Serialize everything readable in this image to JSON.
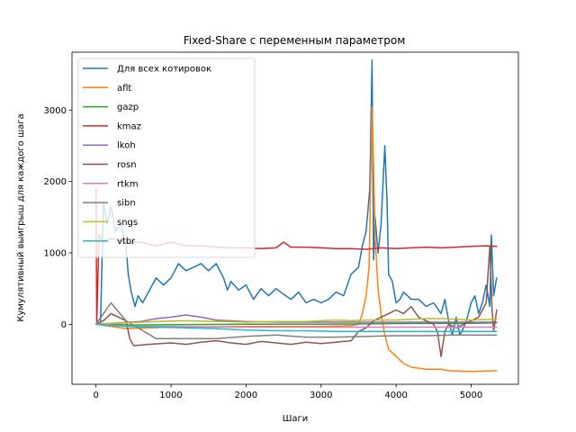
{
  "chart_data": {
    "type": "line",
    "title": "Fixed-Share с переменным параметром",
    "xlabel": "Шаги",
    "ylabel": "Кумулятивный выигрыш для каждого шага",
    "xlim": [
      -320,
      5630
    ],
    "ylim": [
      -840,
      3810
    ],
    "xticks": [
      0,
      1000,
      2000,
      3000,
      4000,
      5000
    ],
    "yticks": [
      0,
      1000,
      2000,
      3000
    ],
    "grid": false,
    "legend_position": "top-left",
    "series": [
      {
        "name": "Для всех котировок",
        "color": "#1f77b4",
        "points": [
          [
            0,
            0
          ],
          [
            60,
            30
          ],
          [
            100,
            1700
          ],
          [
            150,
            1400
          ],
          [
            200,
            1650
          ],
          [
            260,
            1300
          ],
          [
            330,
            1400
          ],
          [
            400,
            1100
          ],
          [
            430,
            700
          ],
          [
            470,
            450
          ],
          [
            520,
            250
          ],
          [
            560,
            400
          ],
          [
            620,
            300
          ],
          [
            700,
            450
          ],
          [
            800,
            650
          ],
          [
            900,
            550
          ],
          [
            1000,
            650
          ],
          [
            1100,
            850
          ],
          [
            1200,
            750
          ],
          [
            1300,
            800
          ],
          [
            1400,
            850
          ],
          [
            1500,
            750
          ],
          [
            1600,
            850
          ],
          [
            1700,
            650
          ],
          [
            1750,
            480
          ],
          [
            1800,
            600
          ],
          [
            1900,
            480
          ],
          [
            2000,
            550
          ],
          [
            2100,
            350
          ],
          [
            2200,
            500
          ],
          [
            2300,
            400
          ],
          [
            2400,
            500
          ],
          [
            2500,
            420
          ],
          [
            2600,
            350
          ],
          [
            2700,
            450
          ],
          [
            2800,
            300
          ],
          [
            2900,
            350
          ],
          [
            3000,
            300
          ],
          [
            3100,
            350
          ],
          [
            3200,
            450
          ],
          [
            3300,
            400
          ],
          [
            3400,
            700
          ],
          [
            3500,
            800
          ],
          [
            3550,
            1100
          ],
          [
            3600,
            1300
          ],
          [
            3650,
            1900
          ],
          [
            3680,
            3700
          ],
          [
            3700,
            900
          ],
          [
            3720,
            1500
          ],
          [
            3760,
            1000
          ],
          [
            3800,
            1400
          ],
          [
            3850,
            2500
          ],
          [
            3880,
            1700
          ],
          [
            3900,
            700
          ],
          [
            3950,
            600
          ],
          [
            4000,
            300
          ],
          [
            4050,
            350
          ],
          [
            4100,
            450
          ],
          [
            4200,
            350
          ],
          [
            4300,
            350
          ],
          [
            4400,
            250
          ],
          [
            4500,
            300
          ],
          [
            4600,
            150
          ],
          [
            4650,
            350
          ],
          [
            4700,
            50
          ],
          [
            4750,
            -150
          ],
          [
            4800,
            100
          ],
          [
            4850,
            -150
          ],
          [
            4900,
            -50
          ],
          [
            4950,
            100
          ],
          [
            5000,
            300
          ],
          [
            5050,
            400
          ],
          [
            5100,
            150
          ],
          [
            5150,
            300
          ],
          [
            5200,
            550
          ],
          [
            5250,
            250
          ],
          [
            5270,
            1250
          ],
          [
            5300,
            400
          ],
          [
            5340,
            650
          ]
        ]
      },
      {
        "name": "aflt",
        "color": "#ff7f0e",
        "points": [
          [
            0,
            0
          ],
          [
            400,
            -60
          ],
          [
            1000,
            -40
          ],
          [
            2000,
            -30
          ],
          [
            3000,
            -30
          ],
          [
            3400,
            -20
          ],
          [
            3500,
            0
          ],
          [
            3550,
            150
          ],
          [
            3600,
            400
          ],
          [
            3640,
            800
          ],
          [
            3680,
            3050
          ],
          [
            3700,
            2200
          ],
          [
            3720,
            1200
          ],
          [
            3760,
            500
          ],
          [
            3800,
            150
          ],
          [
            3850,
            -150
          ],
          [
            3900,
            -350
          ],
          [
            4000,
            -450
          ],
          [
            4100,
            -550
          ],
          [
            4200,
            -600
          ],
          [
            4400,
            -630
          ],
          [
            4600,
            -630
          ],
          [
            4700,
            -650
          ],
          [
            5000,
            -660
          ],
          [
            5340,
            -650
          ]
        ]
      },
      {
        "name": "gazp",
        "color": "#2ca02c",
        "points": [
          [
            0,
            0
          ],
          [
            500,
            -10
          ],
          [
            1000,
            -5
          ],
          [
            2000,
            0
          ],
          [
            3000,
            0
          ],
          [
            4000,
            10
          ],
          [
            5000,
            15
          ],
          [
            5340,
            20
          ]
        ]
      },
      {
        "name": "kmaz",
        "color": "#d62728",
        "points": [
          [
            0,
            1900
          ],
          [
            10,
            0
          ],
          [
            40,
            1250
          ],
          [
            100,
            1150
          ],
          [
            200,
            1200
          ],
          [
            400,
            1150
          ],
          [
            600,
            1150
          ],
          [
            800,
            1100
          ],
          [
            1000,
            1150
          ],
          [
            1200,
            1100
          ],
          [
            1400,
            1100
          ],
          [
            1600,
            1080
          ],
          [
            1800,
            1070
          ],
          [
            2000,
            1070
          ],
          [
            2200,
            1060
          ],
          [
            2400,
            1070
          ],
          [
            2500,
            1150
          ],
          [
            2600,
            1080
          ],
          [
            2800,
            1080
          ],
          [
            3000,
            1070
          ],
          [
            3200,
            1060
          ],
          [
            3400,
            1060
          ],
          [
            3600,
            1050
          ],
          [
            3800,
            1070
          ],
          [
            4000,
            1060
          ],
          [
            4200,
            1070
          ],
          [
            4400,
            1080
          ],
          [
            4600,
            1070
          ],
          [
            4800,
            1080
          ],
          [
            5000,
            1090
          ],
          [
            5200,
            1100
          ],
          [
            5340,
            1090
          ]
        ]
      },
      {
        "name": "lkoh",
        "color": "#9467bd",
        "points": [
          [
            0,
            0
          ],
          [
            300,
            20
          ],
          [
            600,
            40
          ],
          [
            800,
            80
          ],
          [
            1000,
            100
          ],
          [
            1200,
            130
          ],
          [
            1400,
            100
          ],
          [
            1600,
            60
          ],
          [
            2000,
            40
          ],
          [
            2500,
            30
          ],
          [
            3000,
            30
          ],
          [
            3500,
            30
          ],
          [
            4000,
            30
          ],
          [
            4500,
            30
          ],
          [
            5000,
            30
          ],
          [
            5340,
            30
          ]
        ]
      },
      {
        "name": "rosn",
        "color": "#8c564b",
        "points": [
          [
            0,
            0
          ],
          [
            100,
            50
          ],
          [
            200,
            150
          ],
          [
            300,
            100
          ],
          [
            400,
            50
          ],
          [
            450,
            -200
          ],
          [
            500,
            -300
          ],
          [
            700,
            -280
          ],
          [
            1000,
            -260
          ],
          [
            1200,
            -280
          ],
          [
            1400,
            -250
          ],
          [
            1600,
            -230
          ],
          [
            1800,
            -260
          ],
          [
            2000,
            -280
          ],
          [
            2200,
            -240
          ],
          [
            2400,
            -260
          ],
          [
            2600,
            -280
          ],
          [
            2800,
            -250
          ],
          [
            3000,
            -270
          ],
          [
            3200,
            -250
          ],
          [
            3400,
            -230
          ],
          [
            3500,
            -100
          ],
          [
            3600,
            -50
          ],
          [
            3700,
            50
          ],
          [
            3800,
            100
          ],
          [
            3900,
            150
          ],
          [
            4000,
            200
          ],
          [
            4100,
            150
          ],
          [
            4200,
            250
          ],
          [
            4300,
            100
          ],
          [
            4400,
            50
          ],
          [
            4500,
            0
          ],
          [
            4550,
            -100
          ],
          [
            4600,
            -450
          ],
          [
            4650,
            -100
          ],
          [
            4700,
            0
          ],
          [
            4800,
            -50
          ],
          [
            4900,
            0
          ],
          [
            5000,
            50
          ],
          [
            5100,
            100
          ],
          [
            5200,
            300
          ],
          [
            5250,
            1100
          ],
          [
            5280,
            200
          ],
          [
            5300,
            -100
          ],
          [
            5340,
            200
          ]
        ]
      },
      {
        "name": "rtkm",
        "color": "#e377c2",
        "points": [
          [
            0,
            0
          ],
          [
            500,
            -30
          ],
          [
            1000,
            -30
          ],
          [
            2000,
            -40
          ],
          [
            3000,
            -40
          ],
          [
            4000,
            -40
          ],
          [
            5000,
            -40
          ],
          [
            5340,
            -40
          ]
        ]
      },
      {
        "name": "sibn",
        "color": "#7f7f7f",
        "points": [
          [
            0,
            0
          ],
          [
            200,
            300
          ],
          [
            400,
            50
          ],
          [
            800,
            -200
          ],
          [
            1200,
            -200
          ],
          [
            1600,
            -200
          ],
          [
            2000,
            -170
          ],
          [
            2400,
            -150
          ],
          [
            2800,
            -180
          ],
          [
            3200,
            -180
          ],
          [
            3600,
            -170
          ],
          [
            4000,
            -160
          ],
          [
            4400,
            -160
          ],
          [
            4800,
            -150
          ],
          [
            5340,
            -150
          ]
        ]
      },
      {
        "name": "sngs",
        "color": "#bcbd22",
        "points": [
          [
            0,
            0
          ],
          [
            400,
            20
          ],
          [
            800,
            40
          ],
          [
            1200,
            50
          ],
          [
            1600,
            40
          ],
          [
            2000,
            30
          ],
          [
            2400,
            40
          ],
          [
            2800,
            40
          ],
          [
            3000,
            50
          ],
          [
            3200,
            60
          ],
          [
            3400,
            50
          ],
          [
            3600,
            60
          ],
          [
            3800,
            60
          ],
          [
            4000,
            60
          ],
          [
            4200,
            70
          ],
          [
            4400,
            80
          ],
          [
            4600,
            80
          ],
          [
            4800,
            70
          ],
          [
            5000,
            60
          ],
          [
            5340,
            70
          ]
        ]
      },
      {
        "name": "vtbr",
        "color": "#17becf",
        "points": [
          [
            0,
            0
          ],
          [
            400,
            -30
          ],
          [
            800,
            -40
          ],
          [
            1200,
            -50
          ],
          [
            1600,
            -60
          ],
          [
            2000,
            -80
          ],
          [
            2400,
            -90
          ],
          [
            2800,
            -90
          ],
          [
            3200,
            -100
          ],
          [
            3600,
            -100
          ],
          [
            4000,
            -100
          ],
          [
            4400,
            -100
          ],
          [
            4800,
            -100
          ],
          [
            5340,
            -100
          ]
        ]
      }
    ]
  }
}
